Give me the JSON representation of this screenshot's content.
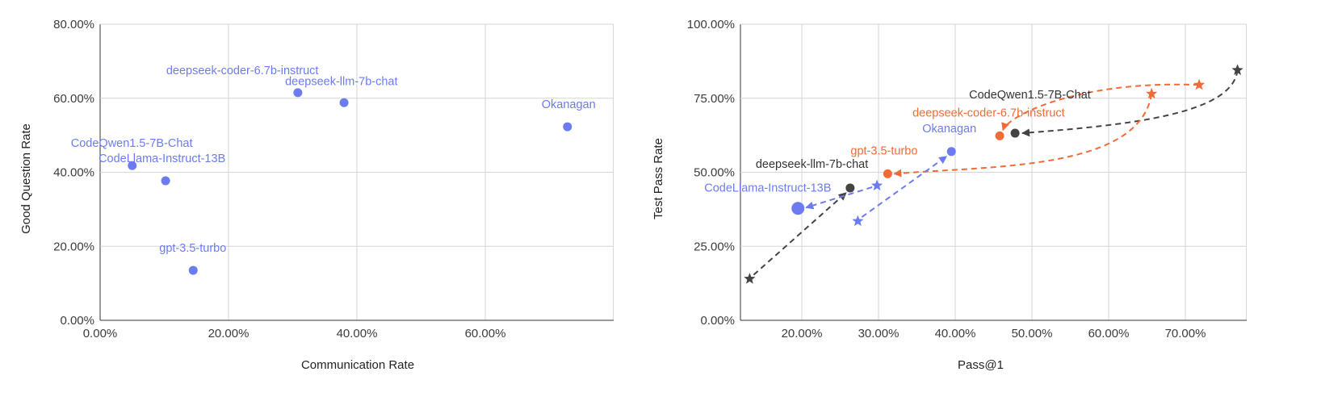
{
  "chart_data": [
    {
      "type": "scatter",
      "xlabel": "Communication Rate",
      "ylabel": "Good Question Rate",
      "xlim": [
        0,
        80
      ],
      "ylim": [
        0,
        80
      ],
      "x_ticks": [
        "0.00%",
        "20.00%",
        "40.00%",
        "60.00%"
      ],
      "y_ticks": [
        "0.00%",
        "20.00%",
        "40.00%",
        "60.00%",
        "80.00%"
      ],
      "grid": true,
      "color": "#6c7cf0",
      "points": [
        {
          "label": "deepseek-coder-6.7b-instruct",
          "x": 30.8,
          "y": 61.5
        },
        {
          "label": "deepseek-llm-7b-chat",
          "x": 38.0,
          "y": 58.8
        },
        {
          "label": "Okanagan",
          "x": 72.8,
          "y": 52.3
        },
        {
          "label": "CodeQwen1.5-7B-Chat",
          "x": 5.0,
          "y": 41.8
        },
        {
          "label": "CodeLlama-Instruct-13B",
          "x": 10.2,
          "y": 37.7
        },
        {
          "label": "gpt-3.5-turbo",
          "x": 14.5,
          "y": 13.5
        }
      ]
    },
    {
      "type": "scatter",
      "xlabel": "Pass@1",
      "ylabel": "Test Pass Rate",
      "xlim": [
        12,
        78
      ],
      "ylim": [
        0,
        100
      ],
      "x_ticks": [
        "20.00%",
        "30.00%",
        "40.00%",
        "50.00%",
        "60.00%",
        "70.00%"
      ],
      "y_ticks": [
        "0.00%",
        "25.00%",
        "50.00%",
        "75.00%",
        "100.00%"
      ],
      "grid": true,
      "colors": {
        "blue": "#6c7cf0",
        "orange": "#f26b36",
        "dark": "#444444"
      },
      "series": [
        {
          "label": "CodeQwen1.5-7B-Chat",
          "color": "dark",
          "from": {
            "x": 76.8,
            "y": 84.5
          },
          "to": {
            "x": 47.8,
            "y": 63.2
          }
        },
        {
          "label": "deepseek-coder-6.7b-instruct",
          "color": "orange",
          "from": {
            "x": 71.8,
            "y": 79.5
          },
          "to": {
            "x": 45.8,
            "y": 62.3
          }
        },
        {
          "label": "gpt-3.5-turbo",
          "color": "orange",
          "from": {
            "x": 65.6,
            "y": 76.5
          },
          "to": {
            "x": 31.2,
            "y": 49.5
          }
        },
        {
          "label": "Okanagan",
          "color": "blue",
          "from": {
            "x": 27.3,
            "y": 33.5
          },
          "to": {
            "x": 39.5,
            "y": 57.0
          }
        },
        {
          "label": "deepseek-llm-7b-chat",
          "color": "dark",
          "from": {
            "x": 13.2,
            "y": 14.0
          },
          "to": {
            "x": 26.3,
            "y": 44.7
          }
        },
        {
          "label": "CodeLlama-Instruct-13B",
          "color": "blue",
          "from": {
            "x": 29.8,
            "y": 45.5
          },
          "to": {
            "x": 19.5,
            "y": 37.8
          }
        }
      ]
    }
  ]
}
